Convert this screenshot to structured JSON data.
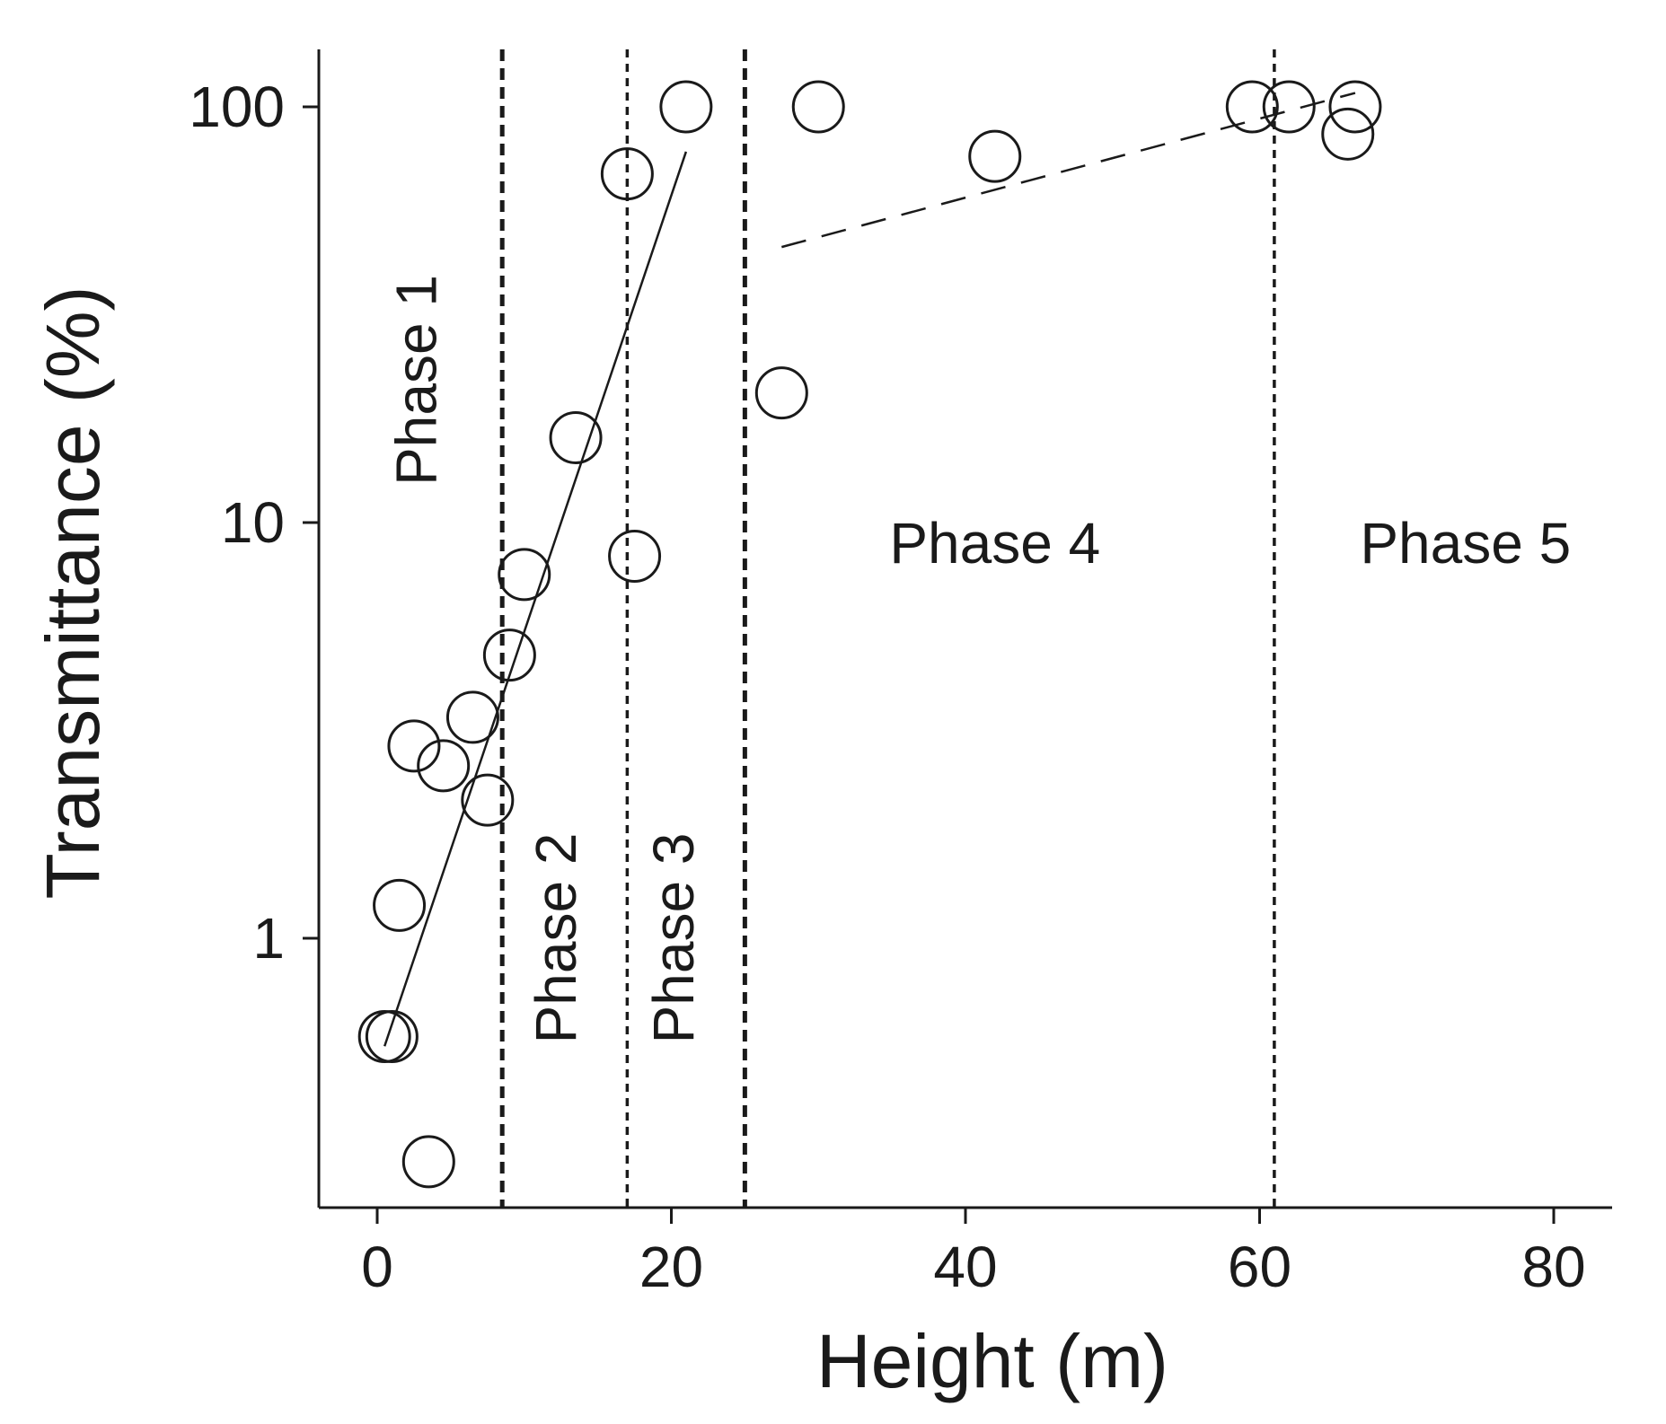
{
  "chart_data": {
    "type": "scatter",
    "title": "",
    "xlabel": "Height (m)",
    "ylabel": "Transmittance (%)",
    "xlim": [
      -4,
      84
    ],
    "ylim": [
      0.2,
      150
    ],
    "y_scale": "log",
    "x_ticks": [
      0,
      20,
      40,
      60,
      80
    ],
    "y_ticks": [
      1,
      10,
      100
    ],
    "x_tick_labels": [
      "0",
      "20",
      "40",
      "60",
      "80"
    ],
    "y_tick_labels": [
      "1",
      "10",
      "100"
    ],
    "grid": false,
    "legend": "none",
    "series": [
      {
        "marker": "open-circle",
        "points": [
          {
            "x": 0.5,
            "y": 0.58
          },
          {
            "x": 1.0,
            "y": 0.58
          },
          {
            "x": 1.5,
            "y": 1.2
          },
          {
            "x": 2.5,
            "y": 2.9
          },
          {
            "x": 3.5,
            "y": 0.29
          },
          {
            "x": 4.5,
            "y": 2.6
          },
          {
            "x": 6.5,
            "y": 3.4
          },
          {
            "x": 7.5,
            "y": 2.15
          },
          {
            "x": 9.0,
            "y": 4.8
          },
          {
            "x": 10.0,
            "y": 7.5
          },
          {
            "x": 13.5,
            "y": 16.0
          },
          {
            "x": 17.0,
            "y": 69.0
          },
          {
            "x": 17.5,
            "y": 8.3
          },
          {
            "x": 21.0,
            "y": 100.0
          },
          {
            "x": 27.5,
            "y": 20.5
          },
          {
            "x": 30.0,
            "y": 100.0
          },
          {
            "x": 42.0,
            "y": 76.0
          },
          {
            "x": 59.5,
            "y": 100.0
          },
          {
            "x": 62.0,
            "y": 100.0
          },
          {
            "x": 66.0,
            "y": 86.0
          },
          {
            "x": 66.5,
            "y": 100.0
          }
        ]
      }
    ],
    "fit_lines": [
      {
        "style": "solid",
        "x": [
          0.5,
          21.0
        ],
        "y": [
          0.55,
          78.0
        ]
      },
      {
        "style": "dashed",
        "x": [
          27.5,
          66.5
        ],
        "y": [
          46.0,
          108.0
        ]
      }
    ],
    "phase_boundaries": [
      {
        "x": 8.5,
        "style": "thick-dashed"
      },
      {
        "x": 17.0,
        "style": "dashed"
      },
      {
        "x": 25.0,
        "style": "thick-dashed"
      },
      {
        "x": 61.0,
        "style": "dashed"
      }
    ],
    "annotations": [
      {
        "text": "Phase 1",
        "orientation": "vertical",
        "x": 4.0,
        "y": 22.0
      },
      {
        "text": "Phase 2",
        "orientation": "vertical",
        "x": 13.5,
        "y": 1.0
      },
      {
        "text": "Phase 3",
        "orientation": "vertical",
        "x": 21.5,
        "y": 1.0
      },
      {
        "text": "Phase 4",
        "orientation": "horizontal",
        "x": 42.0,
        "y": 8.0
      },
      {
        "text": "Phase 5",
        "orientation": "horizontal",
        "x": 74.0,
        "y": 8.0
      }
    ]
  }
}
